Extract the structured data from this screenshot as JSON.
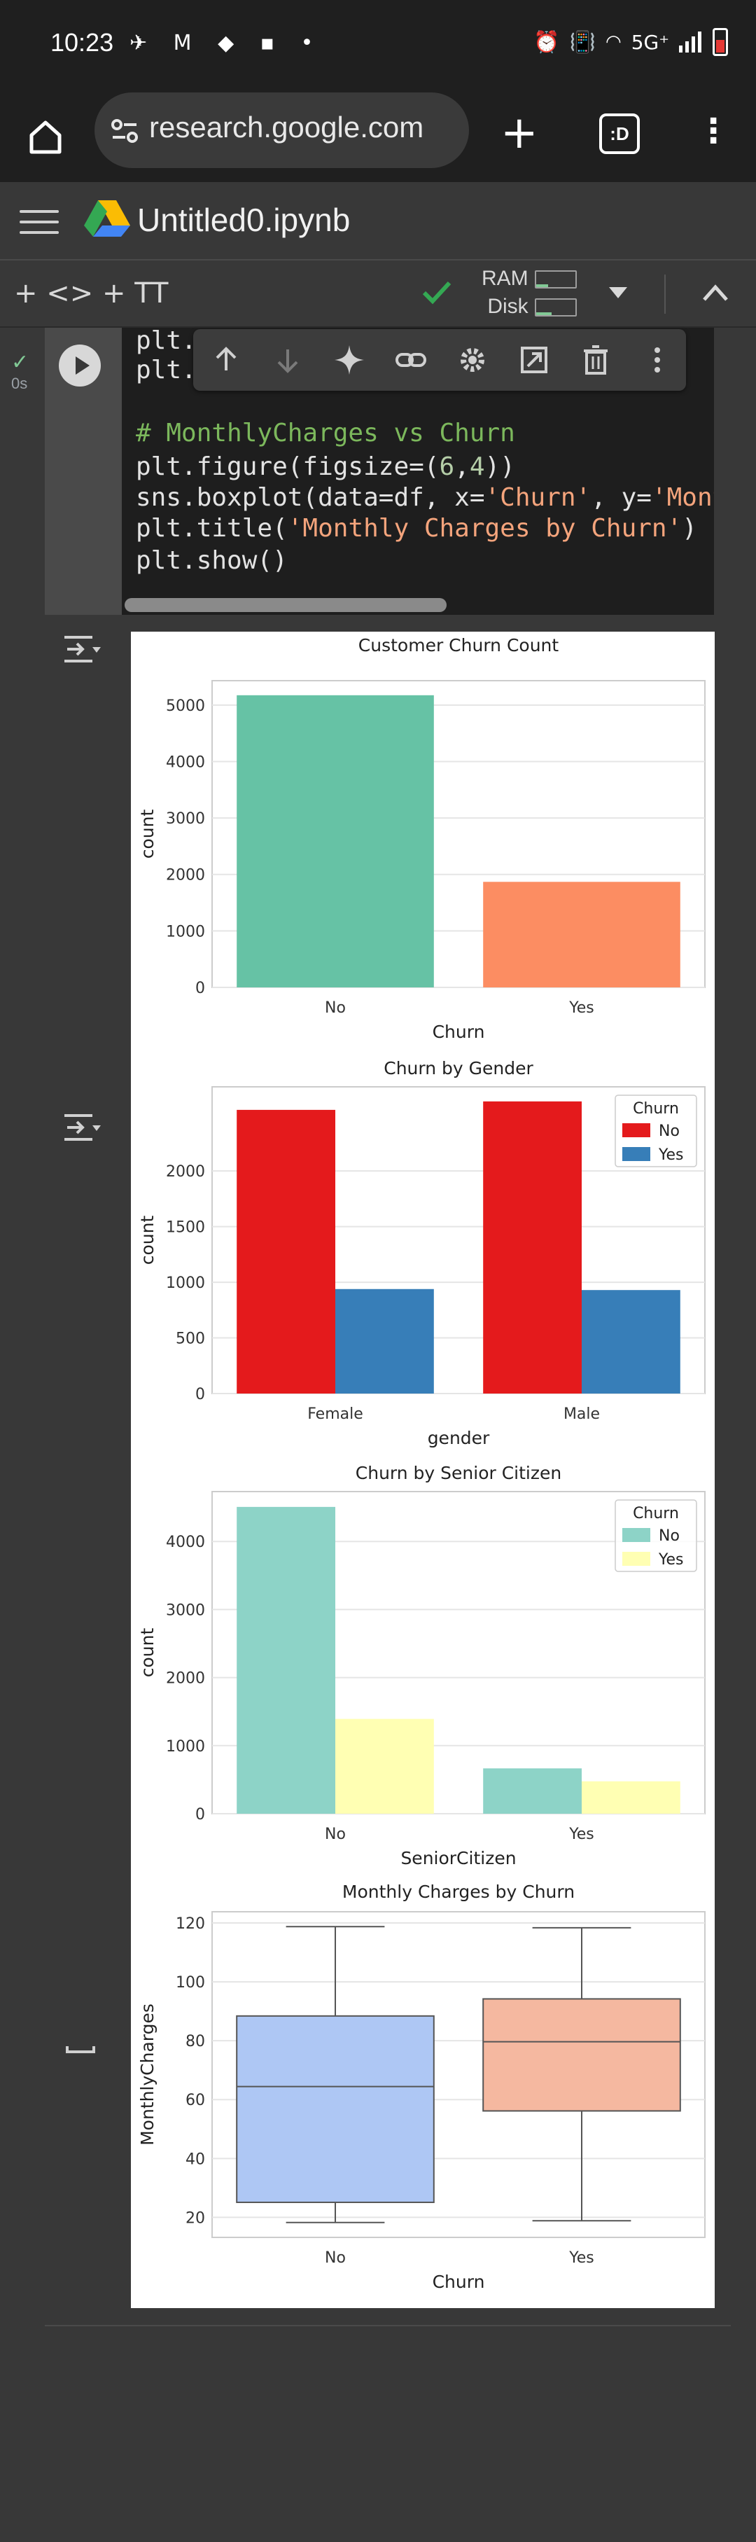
{
  "status_bar": {
    "time": "10:23",
    "left_icons": "✈ M ◆ ▪ •",
    "right_icons": [
      "alarm-icon",
      "vibrate-icon",
      "volte-icon",
      "wifi-icon"
    ],
    "network": "5G⁺",
    "battery_color": "#e53935"
  },
  "browser": {
    "url": "research.google.com",
    "tabs_label": ":D"
  },
  "colab": {
    "notebook_title": "Untitled0.ipynb",
    "toolbar": {
      "add_code": "+ <>",
      "add_text": "+ TT",
      "ram_label": "RAM",
      "disk_label": "Disk"
    },
    "cell": {
      "exec_time": "0s",
      "code_lines": [
        {
          "parts": [
            {
              "t": "plt.",
              "c": ""
            }
          ]
        },
        {
          "parts": [
            {
              "t": "plt.",
              "c": ""
            }
          ]
        },
        {
          "parts": [
            {
              "t": "",
              "c": ""
            }
          ]
        },
        {
          "parts": [
            {
              "t": "# MonthlyCharges vs Churn",
              "c": "c-comment"
            }
          ]
        },
        {
          "parts": [
            {
              "t": "plt.figure(figsize=(",
              "c": ""
            },
            {
              "t": "6",
              "c": "c-num"
            },
            {
              "t": ",",
              "c": ""
            },
            {
              "t": "4",
              "c": "c-num"
            },
            {
              "t": "))",
              "c": ""
            }
          ]
        },
        {
          "parts": [
            {
              "t": "sns.boxplot(data=df, x=",
              "c": ""
            },
            {
              "t": "'Churn'",
              "c": "c-string"
            },
            {
              "t": ", y=",
              "c": ""
            },
            {
              "t": "'Mont",
              "c": "c-string"
            }
          ]
        },
        {
          "parts": [
            {
              "t": "plt.title(",
              "c": ""
            },
            {
              "t": "'Monthly Charges by Churn'",
              "c": "c-string"
            },
            {
              "t": ")",
              "c": ""
            }
          ]
        },
        {
          "parts": [
            {
              "t": "plt.show()",
              "c": ""
            }
          ]
        }
      ]
    }
  },
  "chart_data": [
    {
      "type": "bar",
      "title": "Customer Churn Count",
      "xlabel": "Churn",
      "ylabel": "count",
      "categories": [
        "No",
        "Yes"
      ],
      "series": [
        {
          "name": "",
          "values": [
            5174,
            1869
          ],
          "colors": [
            "#66c2a5",
            "#fc8d62"
          ]
        }
      ],
      "yticks": [
        0,
        1000,
        2000,
        3000,
        4000,
        5000
      ],
      "ylim": [
        0,
        5432
      ],
      "grid": true
    },
    {
      "type": "bar",
      "title": "Churn by Gender",
      "xlabel": "gender",
      "ylabel": "count",
      "categories": [
        "Female",
        "Male"
      ],
      "legend_title": "Churn",
      "legend_position": "top-right",
      "series": [
        {
          "name": "No",
          "values": [
            2549,
            2625
          ],
          "color": "#e41a1c"
        },
        {
          "name": "Yes",
          "values": [
            939,
            930
          ],
          "color": "#377eb8"
        }
      ],
      "yticks": [
        0,
        500,
        1000,
        1500,
        2000
      ],
      "ylim": [
        0,
        2756
      ],
      "grid": true
    },
    {
      "type": "bar",
      "title": "Churn by Senior Citizen",
      "xlabel": "SeniorCitizen",
      "ylabel": "count",
      "categories": [
        "No",
        "Yes"
      ],
      "legend_title": "Churn",
      "legend_position": "top-right",
      "series": [
        {
          "name": "No",
          "values": [
            4508,
            666
          ],
          "color": "#8dd3c7"
        },
        {
          "name": "Yes",
          "values": [
            1393,
            476
          ],
          "color": "#ffffb3"
        }
      ],
      "yticks": [
        0,
        1000,
        2000,
        3000,
        4000
      ],
      "ylim": [
        0,
        4733
      ],
      "grid": true
    },
    {
      "type": "box",
      "title": "Monthly Charges by Churn",
      "xlabel": "Churn",
      "ylabel": "MonthlyCharges",
      "categories": [
        "No",
        "Yes"
      ],
      "boxes": [
        {
          "min": 18.25,
          "q1": 25.1,
          "median": 64.43,
          "q3": 88.4,
          "max": 118.75,
          "color": "#aec7f4"
        },
        {
          "min": 18.85,
          "q1": 56.15,
          "median": 79.65,
          "q3": 94.2,
          "max": 118.35,
          "color": "#f5b8a0"
        }
      ],
      "yticks": [
        20,
        40,
        60,
        80,
        100,
        120
      ],
      "ylim": [
        13.2,
        123.8
      ],
      "grid": true
    }
  ]
}
